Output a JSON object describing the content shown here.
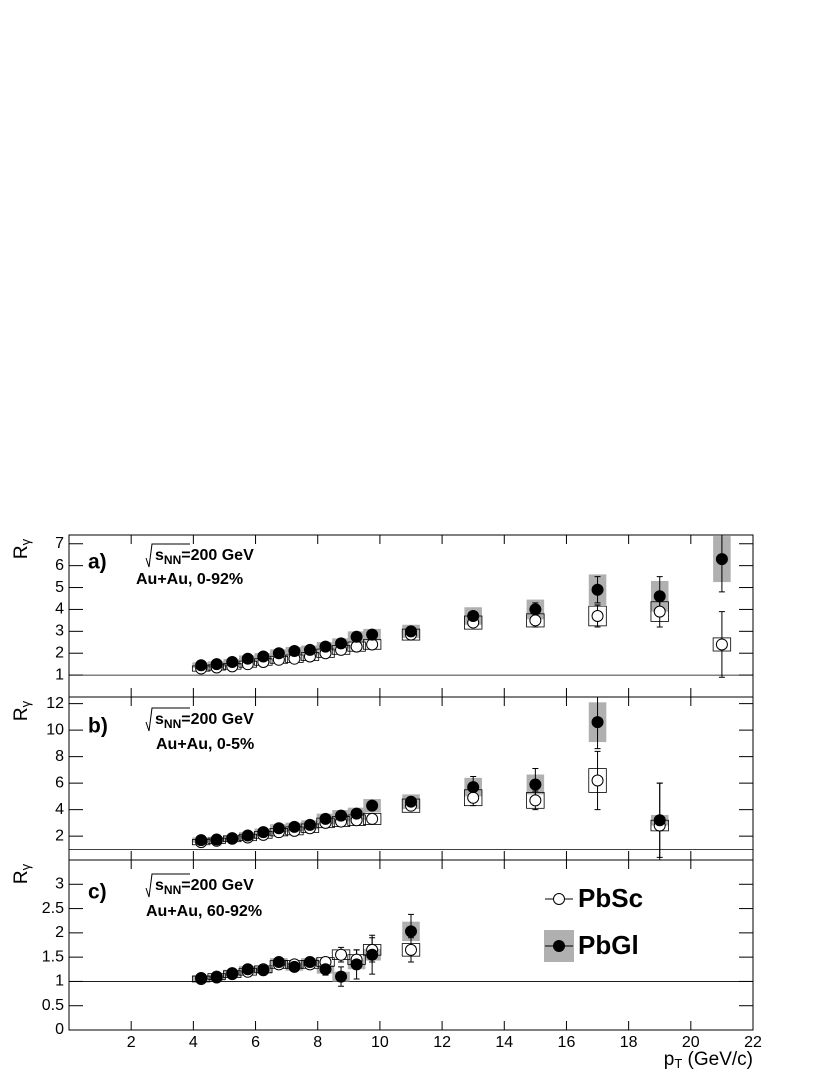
{
  "chart_data": [
    {
      "type": "scatter",
      "panel_label": "a)",
      "energy": {
        "symbol": "s",
        "sub": "NN",
        "text": "=200 GeV"
      },
      "system": "Au+Au, 0-92%",
      "ylabel": "R",
      "ylabel_sub": "γ",
      "xlim": [
        0,
        22
      ],
      "xticks": [
        2,
        4,
        6,
        8,
        10,
        12,
        14,
        16,
        18,
        20,
        22
      ],
      "ylim": [
        0,
        7.4
      ],
      "yticks": [
        1,
        2,
        3,
        4,
        5,
        6,
        7
      ],
      "refline": 1,
      "x": [
        4.25,
        4.75,
        5.25,
        5.75,
        6.25,
        6.75,
        7.25,
        7.75,
        8.25,
        8.75,
        9.25,
        9.75,
        11,
        13,
        15,
        17,
        19,
        21
      ],
      "series": [
        {
          "marker": "open",
          "color": "#000000",
          "sys_fill": "none",
          "values": [
            1.3,
            1.35,
            1.4,
            1.5,
            1.6,
            1.7,
            1.75,
            1.85,
            2.0,
            2.15,
            2.3,
            2.4,
            2.85,
            3.4,
            3.5,
            3.7,
            3.9,
            2.4
          ],
          "errors": [
            0.03,
            0.03,
            0.03,
            0.04,
            0.04,
            0.05,
            0.05,
            0.05,
            0.06,
            0.07,
            0.08,
            0.1,
            0.12,
            0.2,
            0.3,
            0.5,
            0.7,
            1.5
          ],
          "sys": [
            0.12,
            0.12,
            0.13,
            0.14,
            0.15,
            0.16,
            0.17,
            0.18,
            0.19,
            0.2,
            0.21,
            0.22,
            0.25,
            0.3,
            0.3,
            0.45,
            0.45,
            0.3
          ]
        },
        {
          "marker": "filled",
          "color": "#000000",
          "sys_fill": "#b0b0b0",
          "values": [
            1.45,
            1.5,
            1.6,
            1.75,
            1.85,
            2.0,
            2.1,
            2.15,
            2.3,
            2.45,
            2.75,
            2.85,
            3.0,
            3.7,
            4.0,
            4.9,
            4.6,
            6.3
          ],
          "errors": [
            0.03,
            0.03,
            0.03,
            0.04,
            0.04,
            0.05,
            0.05,
            0.05,
            0.06,
            0.07,
            0.08,
            0.1,
            0.12,
            0.2,
            0.3,
            0.6,
            0.9,
            1.5
          ],
          "sys": [
            0.13,
            0.13,
            0.14,
            0.15,
            0.16,
            0.18,
            0.19,
            0.2,
            0.21,
            0.23,
            0.25,
            0.26,
            0.3,
            0.4,
            0.45,
            0.7,
            0.7,
            1.05
          ]
        }
      ]
    },
    {
      "type": "scatter",
      "panel_label": "b)",
      "energy": {
        "symbol": "s",
        "sub": "NN",
        "text": "=200 GeV"
      },
      "system": "Au+Au, 0-5%",
      "ylabel": "R",
      "ylabel_sub": "γ",
      "xlim": [
        0,
        22
      ],
      "xticks": [
        2,
        4,
        6,
        8,
        10,
        12,
        14,
        16,
        18,
        20,
        22
      ],
      "ylim": [
        0.2,
        12.5
      ],
      "yticks": [
        2,
        4,
        6,
        8,
        10,
        12
      ],
      "refline": 1,
      "x": [
        4.25,
        4.75,
        5.25,
        5.75,
        6.25,
        6.75,
        7.25,
        7.75,
        8.25,
        8.75,
        9.25,
        9.75,
        11,
        13,
        15,
        17,
        19
      ],
      "series": [
        {
          "marker": "open",
          "color": "#000000",
          "sys_fill": "none",
          "values": [
            1.55,
            1.65,
            1.8,
            1.9,
            2.1,
            2.3,
            2.4,
            2.6,
            3.0,
            3.1,
            3.2,
            3.3,
            4.3,
            4.9,
            4.7,
            6.2,
            2.8
          ],
          "errors": [
            0.05,
            0.05,
            0.06,
            0.07,
            0.08,
            0.09,
            0.1,
            0.12,
            0.14,
            0.16,
            0.2,
            0.25,
            0.3,
            0.6,
            0.7,
            2.2,
            3.2
          ],
          "sys": [
            0.2,
            0.2,
            0.22,
            0.24,
            0.26,
            0.28,
            0.3,
            0.32,
            0.36,
            0.38,
            0.4,
            0.42,
            0.5,
            0.6,
            0.6,
            0.9,
            0.4
          ]
        },
        {
          "marker": "filled",
          "color": "#000000",
          "sys_fill": "#b0b0b0",
          "values": [
            1.7,
            1.75,
            1.85,
            2.05,
            2.3,
            2.6,
            2.7,
            2.85,
            3.3,
            3.55,
            3.7,
            4.3,
            4.6,
            5.7,
            5.9,
            10.6,
            3.2
          ],
          "errors": [
            0.05,
            0.05,
            0.06,
            0.07,
            0.08,
            0.09,
            0.1,
            0.12,
            0.14,
            0.16,
            0.2,
            0.3,
            0.3,
            0.8,
            1.2,
            2.0,
            2.8
          ],
          "sys": [
            0.2,
            0.2,
            0.22,
            0.25,
            0.28,
            0.3,
            0.32,
            0.34,
            0.4,
            0.42,
            0.45,
            0.5,
            0.55,
            0.7,
            0.75,
            1.5,
            0.4
          ]
        }
      ]
    },
    {
      "type": "scatter",
      "panel_label": "c)",
      "energy": {
        "symbol": "s",
        "sub": "NN",
        "text": "=200 GeV"
      },
      "system": "Au+Au, 60-92%",
      "ylabel": "R",
      "ylabel_sub": "γ",
      "xlabel": "p",
      "xlabel_sub": "T",
      "xlabel_rest": " (GeV/c)",
      "xlim": [
        0,
        22
      ],
      "xticks": [
        2,
        4,
        6,
        8,
        10,
        12,
        14,
        16,
        18,
        20,
        22
      ],
      "ylim": [
        0,
        3.5
      ],
      "yticks": [
        0,
        0.5,
        1,
        1.5,
        2,
        2.5,
        3
      ],
      "refline": 1,
      "legend": true,
      "x": [
        4.25,
        4.75,
        5.25,
        5.75,
        6.25,
        6.75,
        7.25,
        7.75,
        8.25,
        8.75,
        9.25,
        9.75,
        11
      ],
      "series": [
        {
          "name": "PbSc",
          "marker": "open",
          "color": "#000000",
          "sys_fill": "none",
          "values": [
            1.05,
            1.1,
            1.15,
            1.2,
            1.25,
            1.35,
            1.35,
            1.35,
            1.4,
            1.55,
            1.45,
            1.65,
            1.65
          ],
          "errors": [
            0.03,
            0.03,
            0.04,
            0.05,
            0.05,
            0.07,
            0.07,
            0.08,
            0.1,
            0.15,
            0.2,
            0.25,
            0.25
          ],
          "sys": [
            0.06,
            0.06,
            0.07,
            0.07,
            0.07,
            0.08,
            0.08,
            0.08,
            0.09,
            0.1,
            0.1,
            0.11,
            0.13
          ]
        },
        {
          "name": "PbGl",
          "marker": "filled",
          "color": "#000000",
          "sys_fill": "#b0b0b0",
          "values": [
            1.07,
            1.08,
            1.17,
            1.25,
            1.23,
            1.4,
            1.3,
            1.4,
            1.25,
            1.1,
            1.35,
            1.55,
            2.03
          ],
          "errors": [
            0.03,
            0.03,
            0.05,
            0.05,
            0.06,
            0.08,
            0.08,
            0.1,
            0.12,
            0.2,
            0.3,
            0.4,
            0.35
          ],
          "sys": [
            0.06,
            0.06,
            0.07,
            0.07,
            0.07,
            0.08,
            0.08,
            0.08,
            0.09,
            0.1,
            0.1,
            0.12,
            0.2
          ]
        }
      ]
    }
  ]
}
